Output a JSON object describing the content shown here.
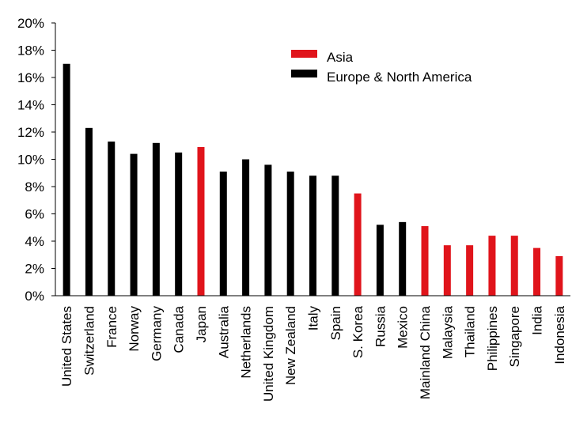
{
  "chart_data": {
    "type": "bar",
    "title": "",
    "xlabel": "",
    "ylabel": "",
    "ylim": [
      0,
      20
    ],
    "y_tick_labels": [
      "0%",
      "2%",
      "4%",
      "6%",
      "8%",
      "10%",
      "12%",
      "14%",
      "16%",
      "18%",
      "20%"
    ],
    "y_ticks": [
      0,
      2,
      4,
      6,
      8,
      10,
      12,
      14,
      16,
      18,
      20
    ],
    "grid": false,
    "legend_position": "top-right",
    "categories": [
      "United States",
      "Switzerland",
      "France",
      "Norway",
      "Germany",
      "Canada",
      "Japan",
      "Australia",
      "Netherlands",
      "United Kingdom",
      "New Zealand",
      "Italy",
      "Spain",
      "S. Korea",
      "Russia",
      "Mexico",
      "Mainland China",
      "Malaysia",
      "Thailand",
      "Philippines",
      "Singapore",
      "India",
      "Indonesia"
    ],
    "values": [
      17.0,
      12.3,
      11.3,
      10.4,
      11.2,
      10.5,
      10.9,
      9.1,
      10.0,
      9.6,
      9.1,
      8.8,
      8.8,
      7.5,
      5.2,
      5.4,
      5.1,
      3.7,
      3.7,
      4.4,
      4.4,
      3.5,
      2.9
    ],
    "groups": [
      "Europe & North America",
      "Europe & North America",
      "Europe & North America",
      "Europe & North America",
      "Europe & North America",
      "Europe & North America",
      "Asia",
      "Europe & North America",
      "Europe & North America",
      "Europe & North America",
      "Europe & North America",
      "Europe & North America",
      "Europe & North America",
      "Asia",
      "Europe & North America",
      "Europe & North America",
      "Asia",
      "Asia",
      "Asia",
      "Asia",
      "Asia",
      "Asia",
      "Asia"
    ],
    "legend": [
      {
        "name": "Asia",
        "color": "#e0141b"
      },
      {
        "name": "Europe & North America",
        "color": "#000000"
      }
    ]
  }
}
